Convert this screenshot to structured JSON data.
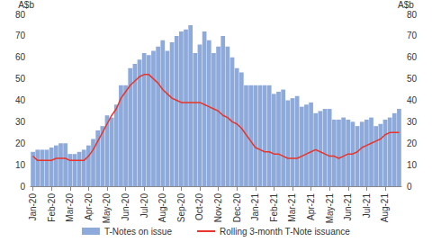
{
  "chart_data": {
    "type": "bar",
    "ylabel": "A$b",
    "y2label": "A$b",
    "categories": [
      "Jan-20",
      null,
      null,
      null,
      "Feb-20",
      null,
      null,
      null,
      "Mar-20",
      null,
      null,
      null,
      "Apr-20",
      null,
      null,
      null,
      "May-20",
      null,
      null,
      null,
      "Jun-20",
      null,
      null,
      null,
      "Jul-20",
      null,
      null,
      null,
      "Aug-20",
      null,
      null,
      null,
      "Sep-20",
      null,
      null,
      null,
      "Oct-20",
      null,
      null,
      null,
      "Nov-20",
      null,
      null,
      null,
      "Dec-20",
      null,
      null,
      null,
      "Jan-21",
      null,
      null,
      null,
      "Feb-21",
      null,
      null,
      null,
      "Mar-21",
      null,
      null,
      null,
      "Apr-21",
      null,
      null,
      null,
      "May-21",
      null,
      null,
      null,
      "Jun-21",
      null,
      null,
      null,
      "Jul-21",
      null,
      null,
      null,
      "Aug-21",
      null,
      null,
      null
    ],
    "series": [
      {
        "name": "T-Notes on issue",
        "type": "bar",
        "color": "#8eaadb",
        "values": [
          16,
          17,
          17,
          17,
          18,
          19,
          20,
          20,
          15,
          15,
          16,
          17,
          19,
          22,
          26,
          28,
          33,
          32,
          38,
          47,
          47,
          55,
          57,
          59,
          62,
          61,
          63,
          65,
          68,
          63,
          67,
          70,
          72,
          73,
          75,
          62,
          66,
          72,
          68,
          62,
          65,
          70,
          65,
          60,
          55,
          53,
          47,
          47,
          47,
          47,
          47,
          47,
          43,
          44,
          45,
          40,
          41,
          42,
          37,
          38,
          39,
          34,
          35,
          36,
          36,
          31,
          31,
          32,
          31,
          30,
          28,
          30,
          31,
          32,
          28,
          29,
          31,
          32,
          34,
          36
        ]
      },
      {
        "name": "Rolling 3-month T-Note issuance",
        "type": "line",
        "color": "#e8342a",
        "values": [
          14,
          12,
          12,
          12,
          12,
          13,
          13,
          13,
          12,
          12,
          12,
          12,
          14,
          17,
          21,
          25,
          29,
          33,
          36,
          41,
          44,
          47,
          49,
          51,
          52,
          52,
          50,
          48,
          45,
          43,
          41,
          40,
          39,
          39,
          39,
          39,
          39,
          38,
          37,
          36,
          35,
          33,
          32,
          30,
          29,
          27,
          24,
          21,
          18,
          17,
          16,
          16,
          15,
          15,
          14,
          13,
          13,
          13,
          14,
          15,
          16,
          17,
          16,
          15,
          14,
          14,
          13,
          14,
          15,
          15,
          16,
          18,
          19,
          20,
          21,
          22,
          24,
          25,
          25,
          25
        ]
      }
    ],
    "ylim": [
      0,
      80
    ],
    "yticks": [
      0,
      10,
      20,
      30,
      40,
      50,
      60,
      70,
      80
    ],
    "y2lim": [
      0,
      80
    ],
    "y2ticks": [
      0,
      10,
      20,
      30,
      40,
      50,
      60,
      70,
      80
    ],
    "grid": false,
    "legend": "bottom"
  }
}
